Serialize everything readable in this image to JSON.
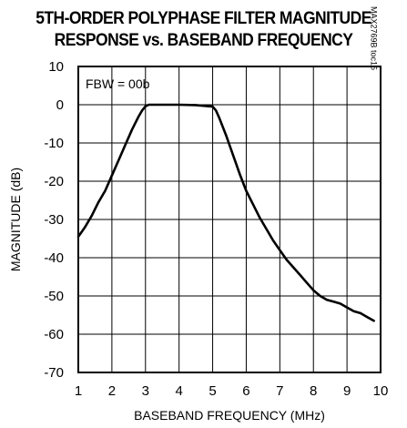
{
  "chart_data": {
    "type": "line",
    "title_line1": "5TH-ORDER POLYPHASE FILTER MAGNITUDE",
    "title_line2": "RESPONSE vs. BASEBAND FREQUENCY",
    "xlabel": "BASEBAND FREQUENCY (MHz)",
    "ylabel": "MAGNITUDE (dB)",
    "xlim": [
      1,
      10
    ],
    "ylim": [
      -70,
      10
    ],
    "xticks": [
      1,
      2,
      3,
      4,
      5,
      6,
      7,
      8,
      9,
      10
    ],
    "yticks": [
      10,
      0,
      -10,
      -20,
      -30,
      -40,
      -50,
      -60,
      -70
    ],
    "grid": true,
    "annotation": "FBW = 00b",
    "side_code": "MAX2769B toc15",
    "series": [
      {
        "x": [
          1.0,
          1.2,
          1.4,
          1.6,
          1.8,
          2.0,
          2.2,
          2.4,
          2.6,
          2.8,
          2.9,
          3.0,
          3.1,
          3.2,
          3.5,
          4.0,
          4.5,
          5.0,
          5.1,
          5.2,
          5.4,
          5.6,
          5.8,
          6.0,
          6.2,
          6.4,
          6.6,
          6.8,
          7.0,
          7.2,
          7.4,
          7.6,
          7.8,
          8.0,
          8.2,
          8.4,
          8.6,
          8.8,
          9.0,
          9.2,
          9.4,
          9.6,
          9.8
        ],
        "y": [
          -34.5,
          -32,
          -29,
          -25.5,
          -22.5,
          -18.5,
          -14.5,
          -10.5,
          -6.5,
          -3,
          -1.5,
          -0.4,
          0,
          0,
          0,
          0,
          -0.1,
          -0.5,
          -1.5,
          -3.5,
          -8,
          -13,
          -18,
          -22.5,
          -26,
          -29.5,
          -32.5,
          -35.5,
          -38,
          -40.5,
          -42.5,
          -44.5,
          -46.5,
          -48.5,
          -50,
          -51,
          -51.5,
          -52,
          -53,
          -54,
          -54.5,
          -55.5,
          -56.5
        ]
      }
    ]
  }
}
